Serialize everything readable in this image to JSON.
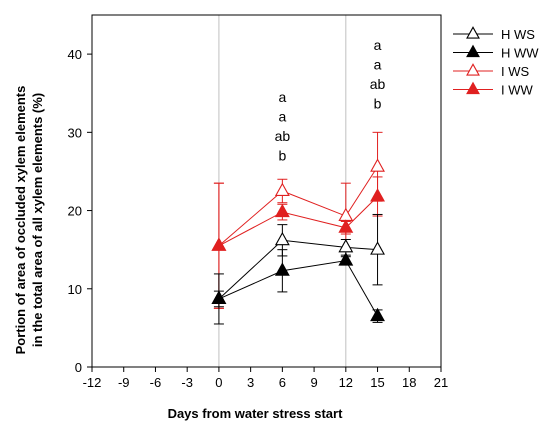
{
  "chart_data": {
    "type": "line",
    "title": "",
    "xlabel": "Days from water stress start",
    "ylabel_lines": [
      "Portion of area of occluded xylem elements",
      "in the total area of all xylem elements (%)"
    ],
    "xlim": [
      -12,
      21
    ],
    "ylim": [
      0,
      45
    ],
    "xticks": [
      -12,
      -9,
      -6,
      -3,
      0,
      3,
      6,
      9,
      12,
      15,
      18,
      21
    ],
    "yticks": [
      0,
      10,
      20,
      30,
      40
    ],
    "vertical_reference_lines": [
      0,
      12
    ],
    "legend_position": "top-right",
    "series": [
      {
        "name": "H WS",
        "color": "#000000",
        "marker": "open-triangle",
        "x": [
          0,
          6,
          12,
          15
        ],
        "y": [
          8.7,
          16.2,
          15.3,
          15.0
        ],
        "err_low": [
          3.2,
          2.0,
          1.0,
          4.5
        ],
        "err_high": [
          3.2,
          2.0,
          1.0,
          4.5
        ]
      },
      {
        "name": "H WW",
        "color": "#000000",
        "marker": "filled-triangle",
        "x": [
          0,
          6,
          12,
          15
        ],
        "y": [
          8.7,
          12.3,
          13.6,
          6.5
        ],
        "err_low": [
          1.0,
          2.7,
          0.5,
          0.8
        ],
        "err_high": [
          1.0,
          2.7,
          0.5,
          0.8
        ]
      },
      {
        "name": "I WS",
        "color": "#e02020",
        "marker": "open-triangle",
        "x": [
          0,
          6,
          12,
          15
        ],
        "y": [
          15.5,
          22.5,
          19.3,
          25.6
        ],
        "err_low": [
          8.0,
          1.5,
          4.2,
          4.4
        ],
        "err_high": [
          8.0,
          1.5,
          4.2,
          4.4
        ]
      },
      {
        "name": "I WW",
        "color": "#e02020",
        "marker": "filled-triangle",
        "x": [
          0,
          6,
          12,
          15
        ],
        "y": [
          15.5,
          19.8,
          17.8,
          21.8
        ],
        "err_low": [
          8.0,
          1.0,
          0.8,
          2.5
        ],
        "err_high": [
          8.0,
          1.0,
          0.8,
          2.5
        ]
      }
    ],
    "annotations": [
      {
        "x": 6,
        "labels": [
          "a",
          "a",
          "ab",
          "b"
        ]
      },
      {
        "x": 15,
        "labels": [
          "a",
          "a",
          "ab",
          "b"
        ]
      }
    ]
  }
}
